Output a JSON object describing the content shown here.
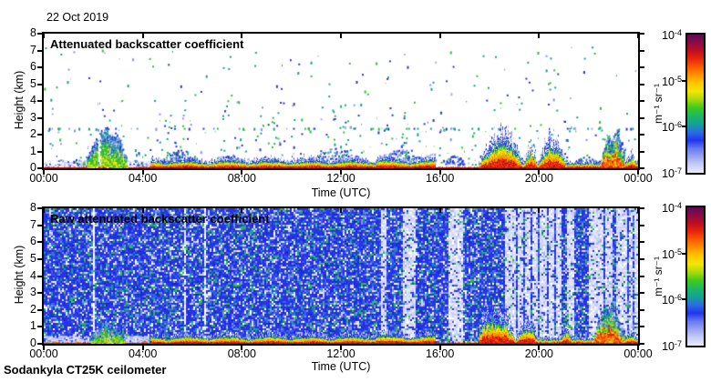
{
  "page": {
    "date_label": "22 Oct 2019",
    "station_label": "Sodankyla CT25K ceilometer",
    "background": "#ffffff"
  },
  "palette": {
    "maroon": "#6f0a20",
    "darkred": "#a30d12",
    "red": "#e61d0d",
    "orangered": "#fb4f05",
    "orange": "#ff8800",
    "amber": "#ffc300",
    "yellow": "#f7e70b",
    "yellowgreen": "#b3e00d",
    "green": "#2ec02e",
    "teal": "#14a18c",
    "blue": "#2434e6",
    "midblue": "#3f5cee",
    "deepblue": "#1827cd",
    "lightblue": "#7e92f2",
    "periwinkle": "#a6b1f4",
    "lavender": "#ccd2f6",
    "pale": "#e3e6f8",
    "white": "#ffffff"
  },
  "colorbar_gradient": [
    "#5c0a55",
    "#8c0c42",
    "#c00e20",
    "#e8260c",
    "#f95c02",
    "#ff9300",
    "#ffc800",
    "#f1e606",
    "#a8d90c",
    "#3fca1d",
    "#1cb763",
    "#12a394",
    "#2a6ee2",
    "#2135ee",
    "#6679f0",
    "#98a4f3",
    "#c6cdf6",
    "#e9ebfb"
  ],
  "chart_data": [
    {
      "type": "heatmap",
      "title": "Attenuated backscatter coefficient",
      "xlabel": "Time (UTC)",
      "ylabel": "Height (km)",
      "x_tick_labels": [
        "00:00",
        "04:00",
        "08:00",
        "12:00",
        "16:00",
        "20:00",
        "00:00"
      ],
      "x_tick_hours": [
        0,
        4,
        8,
        12,
        16,
        20,
        24
      ],
      "y_tick_labels": [
        "0",
        "1",
        "2",
        "3",
        "4",
        "5",
        "6",
        "7",
        "8"
      ],
      "xlim_hours": [
        0,
        24
      ],
      "ylim_km": [
        0,
        8
      ],
      "colorbar": {
        "unit": "m⁻¹ sr⁻¹",
        "scale": "log",
        "range_m1sr1": [
          "1e-7",
          "1e-4"
        ],
        "tick_labels": [
          {
            "base": "10",
            "exp": "-4"
          },
          {
            "base": "10",
            "exp": "-5"
          },
          {
            "base": "10",
            "exp": "-6"
          },
          {
            "base": "10",
            "exp": "-7"
          }
        ]
      },
      "render": {
        "seed": 7,
        "style": "processed",
        "specks": 520,
        "speck_columns": [
          [
            2.35,
            5.5
          ],
          [
            2.75,
            4
          ],
          [
            5.0,
            3
          ],
          [
            5.4,
            2.5
          ],
          [
            7.3,
            4
          ],
          [
            9.3,
            3
          ],
          [
            11.6,
            4.5
          ],
          [
            12.2,
            3
          ],
          [
            13.9,
            6.5
          ],
          [
            14.6,
            3
          ],
          [
            19.2,
            4
          ],
          [
            20.5,
            6.8
          ],
          [
            21.0,
            3
          ]
        ],
        "haze_band": [
          0,
          4.4,
          0.1,
          0.5
        ],
        "streak_plume": [
          1.75,
          3.35,
          2.35
        ],
        "speck_mounds": [
          [
            4.75,
            6.3,
            0.9
          ],
          [
            6.9,
            8.15,
            0.6
          ],
          [
            9.0,
            9.7,
            0.5
          ],
          [
            10.7,
            12.9,
            1.0
          ],
          [
            13.4,
            15.4,
            0.95
          ],
          [
            16.2,
            16.95,
            0.6
          ],
          [
            21.4,
            22.4,
            0.5
          ]
        ],
        "mounds": [
          [
            17.55,
            19.35,
            1.8
          ],
          [
            19.35,
            19.95,
            1.15
          ],
          [
            19.95,
            21.1,
            1.6
          ],
          [
            23.4,
            24,
            0.75
          ]
        ],
        "spikes": [
          22.45,
          23.35,
          2.85
        ]
      }
    },
    {
      "type": "heatmap",
      "title": "Raw attenuated backscatter coefficient",
      "xlabel": "Time (UTC)",
      "ylabel": "Height (km)",
      "x_tick_labels": [
        "00:00",
        "04:00",
        "08:00",
        "12:00",
        "16:00",
        "20:00",
        "00:00"
      ],
      "x_tick_hours": [
        0,
        4,
        8,
        12,
        16,
        20,
        24
      ],
      "y_tick_labels": [
        "0",
        "1",
        "2",
        "3",
        "4",
        "5",
        "6",
        "7",
        "8"
      ],
      "xlim_hours": [
        0,
        24
      ],
      "ylim_km": [
        0,
        8
      ],
      "colorbar": {
        "unit": "m⁻¹ sr⁻¹",
        "scale": "log",
        "range_m1sr1": [
          "1e-7",
          "1e-4"
        ],
        "tick_labels": [
          {
            "base": "10",
            "exp": "-4"
          },
          {
            "base": "10",
            "exp": "-5"
          },
          {
            "base": "10",
            "exp": "-6"
          },
          {
            "base": "10",
            "exp": "-7"
          }
        ]
      },
      "render": {
        "seed": 13,
        "style": "raw",
        "noise_segments": [
          [
            0,
            13.55,
            "dense"
          ],
          [
            13.55,
            13.8,
            "light"
          ],
          [
            13.8,
            14.5,
            "dense"
          ],
          [
            14.5,
            15.0,
            "light"
          ],
          [
            15.0,
            16.3,
            "dense"
          ],
          [
            16.3,
            16.9,
            "light"
          ],
          [
            16.9,
            18.6,
            "dense"
          ],
          [
            18.6,
            20.9,
            "light"
          ],
          [
            20.9,
            21.1,
            "dense"
          ],
          [
            21.1,
            21.4,
            "light"
          ],
          [
            21.4,
            22.0,
            "dense"
          ],
          [
            22.0,
            24,
            "light"
          ]
        ],
        "dense_lines": [
          19.05,
          19.35,
          19.65,
          19.95,
          20.3,
          20.6,
          22.6,
          23.0,
          23.55,
          23.8
        ],
        "white_streaks": [
          2.0,
          5.65,
          6.5
        ],
        "haze_band": [
          0,
          4.2,
          0.1,
          0.5
        ],
        "streak_plume": [
          1.9,
          3.25,
          1.3
        ],
        "speck_columns": [],
        "mounds": [
          [
            17.4,
            19.05,
            1.9
          ],
          [
            19.05,
            19.95,
            1.3
          ],
          [
            20.85,
            21.35,
            0.9
          ],
          [
            23.4,
            24,
            0.7
          ]
        ],
        "spikes": [
          22.2,
          23.35,
          2.5
        ]
      }
    }
  ]
}
